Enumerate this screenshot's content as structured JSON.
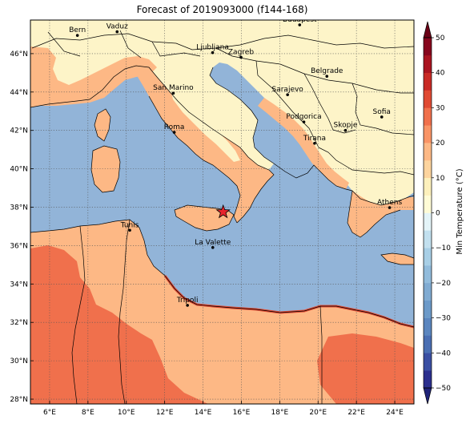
{
  "title": "Forecast of 2019093000 (f144-168)",
  "map": {
    "lon_range": [
      5,
      25
    ],
    "lat_range": [
      27.75,
      47.75
    ],
    "lon_ticks": [
      "6°E",
      "8°E",
      "10°E",
      "12°E",
      "14°E",
      "16°E",
      "18°E",
      "20°E",
      "22°E",
      "24°E"
    ],
    "lat_ticks": [
      "28°N",
      "30°N",
      "32°N",
      "34°N",
      "36°N",
      "38°N",
      "40°N",
      "42°N",
      "44°N",
      "46°N"
    ],
    "grid": true,
    "sea_color": "#92b4d8",
    "cities": [
      {
        "name": "Bern",
        "lon": 7.45,
        "lat": 46.95
      },
      {
        "name": "Vaduz",
        "lon": 9.52,
        "lat": 47.14
      },
      {
        "name": "Budapest",
        "lon": 19.04,
        "lat": 47.5
      },
      {
        "name": "Ljubljana",
        "lon": 14.5,
        "lat": 46.05
      },
      {
        "name": "Zagreb",
        "lon": 15.98,
        "lat": 45.81
      },
      {
        "name": "Belgrade",
        "lon": 20.46,
        "lat": 44.82
      },
      {
        "name": "San Marino",
        "lon": 12.45,
        "lat": 43.94
      },
      {
        "name": "Sarajevo",
        "lon": 18.41,
        "lat": 43.86
      },
      {
        "name": "Sofia",
        "lon": 23.32,
        "lat": 42.7
      },
      {
        "name": "Podgorica",
        "lon": 19.26,
        "lat": 42.44
      },
      {
        "name": "Skopje",
        "lon": 21.43,
        "lat": 42.0
      },
      {
        "name": "Roma",
        "lon": 12.5,
        "lat": 41.9
      },
      {
        "name": "Tirana",
        "lon": 19.82,
        "lat": 41.33
      },
      {
        "name": "Athens",
        "lon": 23.73,
        "lat": 37.98
      },
      {
        "name": "Tunis",
        "lon": 10.18,
        "lat": 36.8
      },
      {
        "name": "La Valette",
        "lon": 14.51,
        "lat": 35.9
      },
      {
        "name": "Tripoli",
        "lon": 13.19,
        "lat": 32.89
      }
    ],
    "marker": {
      "type": "star",
      "lon": 15.05,
      "lat": 37.75,
      "color": "#e8242c"
    }
  },
  "colorbar": {
    "label": "Min Temperature (°C)",
    "ticks": [
      "−50",
      "−40",
      "−30",
      "−20",
      "−10",
      "0",
      "10",
      "20",
      "30",
      "40",
      "50"
    ],
    "levels": [
      -50,
      -45,
      -40,
      -35,
      -30,
      -25,
      -20,
      -15,
      -10,
      -5,
      0,
      5,
      10,
      15,
      20,
      25,
      30,
      35,
      40,
      45,
      50
    ],
    "colors": [
      "#2b2f8e",
      "#3a4fa3",
      "#4a6fb3",
      "#5b86bf",
      "#6c9ac9",
      "#80abd2",
      "#92bcdc",
      "#a8cfe6",
      "#c2e0ef",
      "#e4f4f8",
      "#fffbd6",
      "#fdf0bc",
      "#fdd49e",
      "#fdb885",
      "#f99466",
      "#f0704c",
      "#e04a33",
      "#c92a25",
      "#aa1420",
      "#87061d"
    ],
    "under_color": "#1f2378",
    "over_color": "#6b0016"
  }
}
